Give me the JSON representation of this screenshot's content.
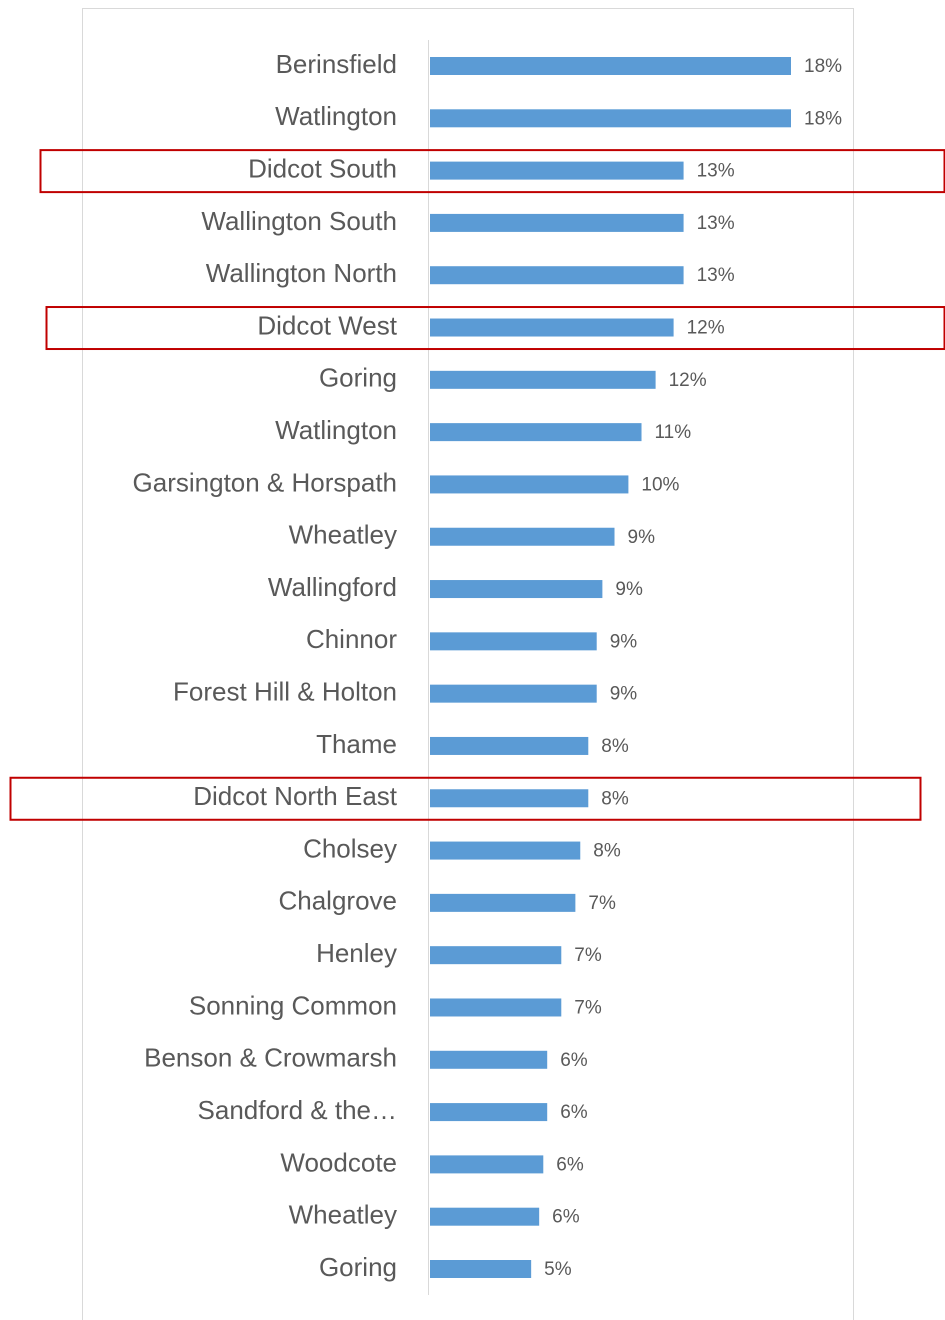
{
  "chart_data": {
    "type": "bar",
    "orientation": "horizontal",
    "categories": [
      "Berinsfield",
      "Watlington",
      "Didcot South",
      "Wallington South",
      "Wallington North",
      "Didcot West",
      "Goring",
      "Watlington",
      "Garsington & Horspath",
      "Wheatley",
      "Wallingford",
      "Chinnor",
      "Forest Hill & Holton",
      "Thame",
      "Didcot North East",
      "Cholsey",
      "Chalgrove",
      "Henley",
      "Sonning Common",
      "Benson & Crowmarsh",
      "Sandford & the…",
      "Woodcote",
      "Wheatley",
      "Goring"
    ],
    "values": [
      18.45,
      18.45,
      12.96,
      12.96,
      12.96,
      12.45,
      11.53,
      10.81,
      10.14,
      9.43,
      8.81,
      8.52,
      8.52,
      8.09,
      8.09,
      7.68,
      7.43,
      6.71,
      6.71,
      5.99,
      5.99,
      5.79,
      5.58,
      5.17
    ],
    "value_labels": [
      "18%",
      "18%",
      "13%",
      "13%",
      "13%",
      "12%",
      "12%",
      "11%",
      "10%",
      "9%",
      "9%",
      "9%",
      "9%",
      "8%",
      "8%",
      "8%",
      "7%",
      "7%",
      "7%",
      "6%",
      "6%",
      "6%",
      "6%",
      "5%"
    ],
    "color": "#5b9bd5",
    "highlight": [
      2,
      5,
      14
    ],
    "highlight_color": "#c00000"
  }
}
